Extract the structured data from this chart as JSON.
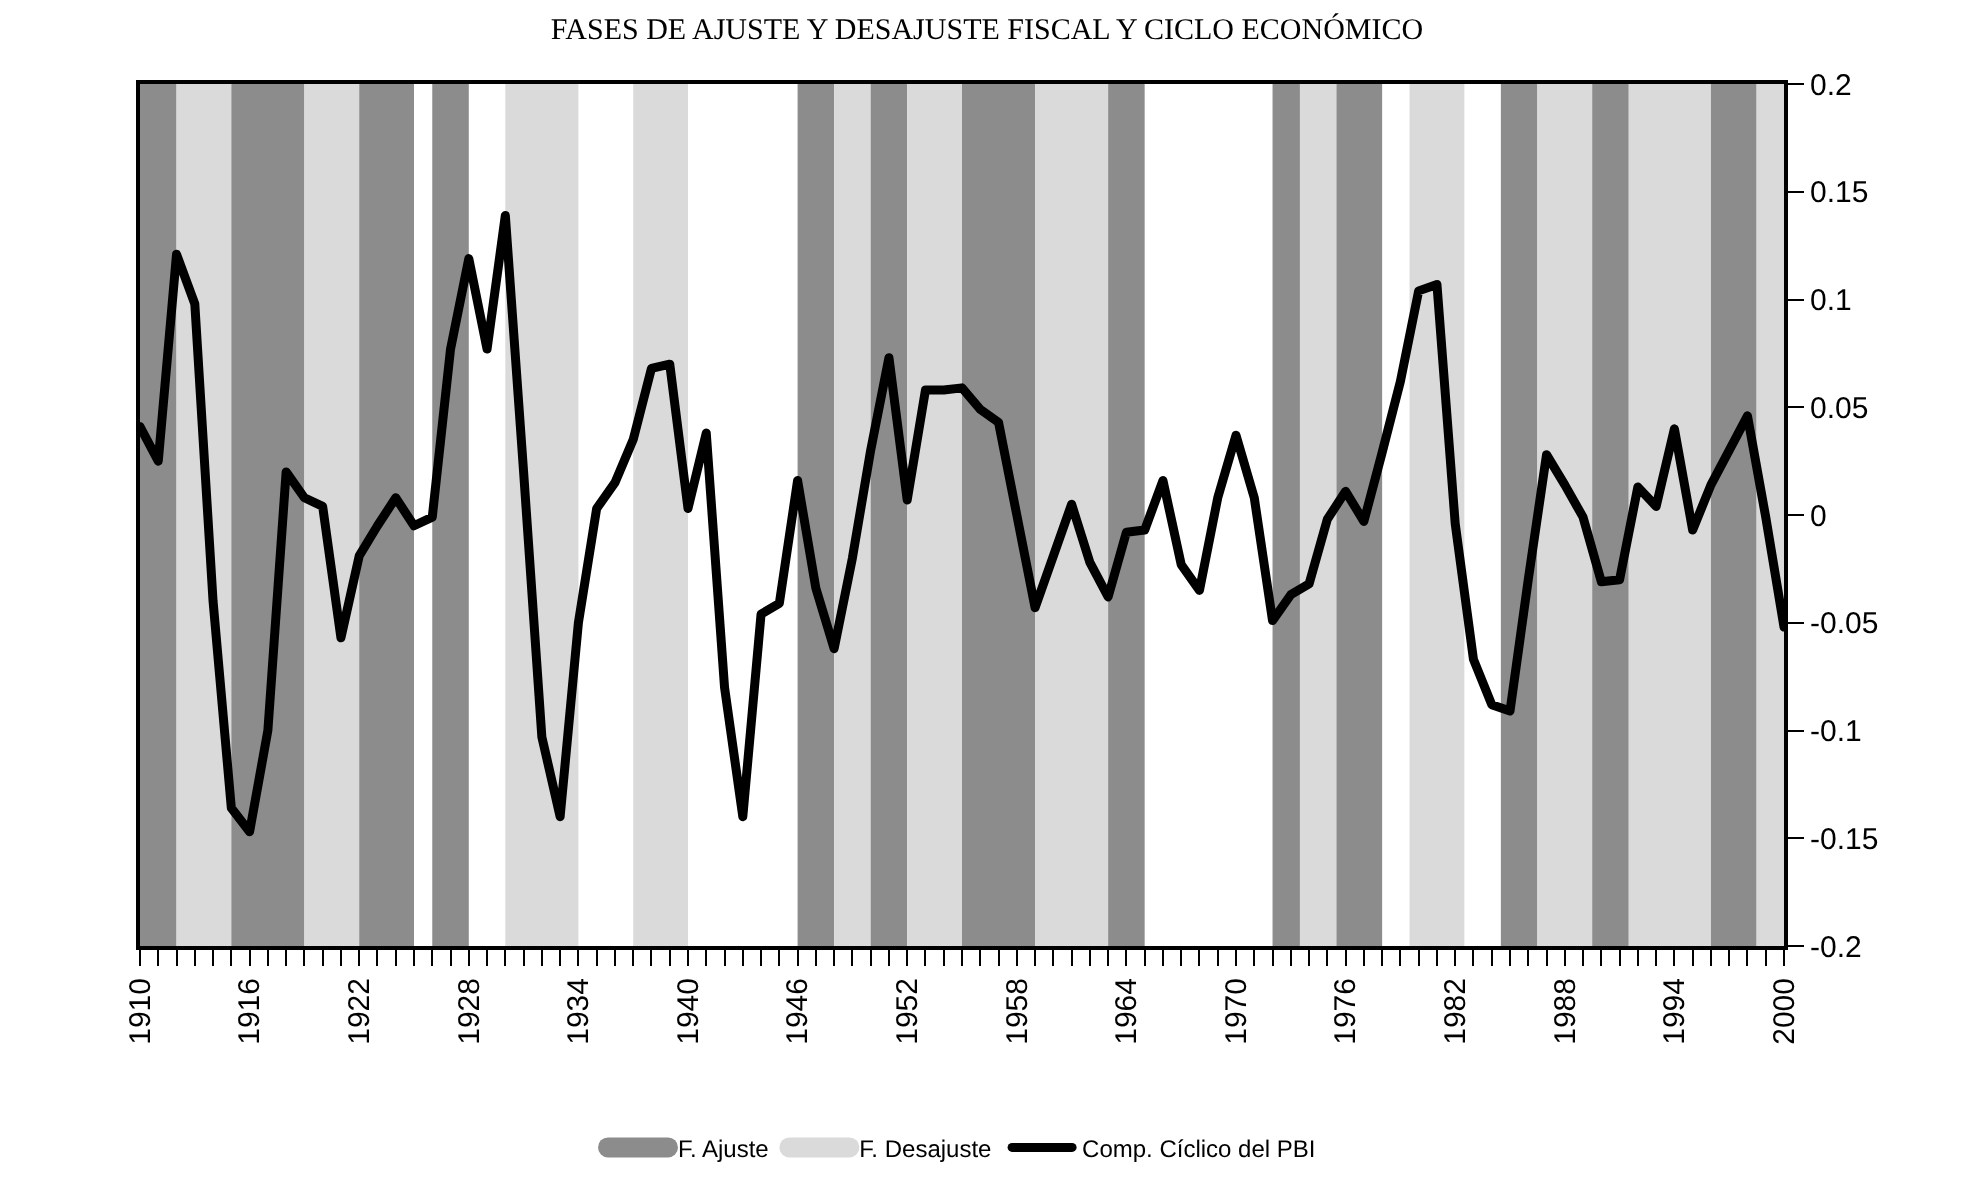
{
  "chart_data": {
    "type": "line",
    "title": "FASES DE AJUSTE Y DESAJUSTE FISCAL Y CICLO ECONÓMICO",
    "x": [
      1910,
      1911,
      1912,
      1913,
      1914,
      1915,
      1916,
      1917,
      1918,
      1919,
      1920,
      1921,
      1922,
      1923,
      1924,
      1925,
      1926,
      1927,
      1928,
      1929,
      1930,
      1931,
      1932,
      1933,
      1934,
      1935,
      1936,
      1937,
      1938,
      1939,
      1940,
      1941,
      1942,
      1943,
      1944,
      1945,
      1946,
      1947,
      1948,
      1949,
      1950,
      1951,
      1952,
      1953,
      1954,
      1955,
      1956,
      1957,
      1958,
      1959,
      1960,
      1961,
      1962,
      1963,
      1964,
      1965,
      1966,
      1967,
      1968,
      1969,
      1970,
      1971,
      1972,
      1973,
      1974,
      1975,
      1976,
      1977,
      1978,
      1979,
      1980,
      1981,
      1982,
      1983,
      1984,
      1985,
      1986,
      1987,
      1988,
      1989,
      1990,
      1991,
      1992,
      1993,
      1994,
      1995,
      1996,
      1997,
      1998,
      1999,
      2000
    ],
    "series": [
      {
        "name": "Comp. Cíclico del PBI",
        "color": "#000000",
        "values": [
          0.041,
          0.025,
          0.121,
          0.098,
          -0.04,
          -0.136,
          -0.147,
          -0.1,
          0.02,
          0.008,
          0.004,
          -0.057,
          -0.019,
          -0.005,
          0.008,
          -0.005,
          -0.001,
          0.077,
          0.119,
          0.077,
          0.139,
          0.02,
          -0.103,
          -0.14,
          -0.05,
          0.003,
          0.015,
          0.035,
          0.068,
          0.07,
          0.003,
          0.038,
          -0.08,
          -0.14,
          -0.046,
          -0.041,
          0.016,
          -0.034,
          -0.062,
          -0.02,
          0.03,
          0.073,
          0.007,
          0.058,
          0.058,
          0.059,
          0.049,
          0.043,
          0.0,
          -0.043,
          -0.019,
          0.005,
          -0.022,
          -0.038,
          -0.008,
          -0.007,
          0.016,
          -0.023,
          -0.035,
          0.008,
          0.037,
          0.008,
          -0.049,
          -0.037,
          -0.032,
          -0.002,
          0.011,
          -0.003,
          0.029,
          0.062,
          0.104,
          0.107,
          -0.004,
          -0.067,
          -0.088,
          -0.091,
          -0.03,
          0.028,
          0.014,
          -0.001,
          -0.031,
          -0.03,
          0.013,
          0.004,
          0.04,
          -0.007,
          0.014,
          0.03,
          0.046,
          -0.001,
          -0.052
        ]
      }
    ],
    "xlim": [
      1910,
      2000
    ],
    "xticks": [
      {
        "value": 1910,
        "label": "1910"
      },
      {
        "value": 1911,
        "label": null
      },
      {
        "value": 1912,
        "label": null
      },
      {
        "value": 1913,
        "label": null
      },
      {
        "value": 1914,
        "label": null
      },
      {
        "value": 1915,
        "label": null
      },
      {
        "value": 1916,
        "label": "1916"
      },
      {
        "value": 1917,
        "label": null
      },
      {
        "value": 1918,
        "label": null
      },
      {
        "value": 1919,
        "label": null
      },
      {
        "value": 1920,
        "label": null
      },
      {
        "value": 1921,
        "label": null
      },
      {
        "value": 1922,
        "label": "1922"
      },
      {
        "value": 1923,
        "label": null
      },
      {
        "value": 1924,
        "label": null
      },
      {
        "value": 1925,
        "label": null
      },
      {
        "value": 1926,
        "label": null
      },
      {
        "value": 1927,
        "label": null
      },
      {
        "value": 1928,
        "label": "1928"
      },
      {
        "value": 1929,
        "label": null
      },
      {
        "value": 1930,
        "label": null
      },
      {
        "value": 1931,
        "label": null
      },
      {
        "value": 1932,
        "label": null
      },
      {
        "value": 1933,
        "label": null
      },
      {
        "value": 1934,
        "label": "1934"
      },
      {
        "value": 1935,
        "label": null
      },
      {
        "value": 1936,
        "label": null
      },
      {
        "value": 1937,
        "label": null
      },
      {
        "value": 1938,
        "label": null
      },
      {
        "value": 1939,
        "label": null
      },
      {
        "value": 1940,
        "label": "1940"
      },
      {
        "value": 1941,
        "label": null
      },
      {
        "value": 1942,
        "label": null
      },
      {
        "value": 1943,
        "label": null
      },
      {
        "value": 1944,
        "label": null
      },
      {
        "value": 1945,
        "label": null
      },
      {
        "value": 1946,
        "label": "1946"
      },
      {
        "value": 1947,
        "label": null
      },
      {
        "value": 1948,
        "label": null
      },
      {
        "value": 1949,
        "label": null
      },
      {
        "value": 1950,
        "label": null
      },
      {
        "value": 1951,
        "label": null
      },
      {
        "value": 1952,
        "label": "1952"
      },
      {
        "value": 1953,
        "label": null
      },
      {
        "value": 1954,
        "label": null
      },
      {
        "value": 1955,
        "label": null
      },
      {
        "value": 1956,
        "label": null
      },
      {
        "value": 1957,
        "label": null
      },
      {
        "value": 1958,
        "label": "1958"
      },
      {
        "value": 1959,
        "label": null
      },
      {
        "value": 1960,
        "label": null
      },
      {
        "value": 1961,
        "label": null
      },
      {
        "value": 1962,
        "label": null
      },
      {
        "value": 1963,
        "label": null
      },
      {
        "value": 1964,
        "label": "1964"
      },
      {
        "value": 1965,
        "label": null
      },
      {
        "value": 1966,
        "label": null
      },
      {
        "value": 1967,
        "label": null
      },
      {
        "value": 1968,
        "label": null
      },
      {
        "value": 1969,
        "label": null
      },
      {
        "value": 1970,
        "label": "1970"
      },
      {
        "value": 1971,
        "label": null
      },
      {
        "value": 1972,
        "label": null
      },
      {
        "value": 1973,
        "label": null
      },
      {
        "value": 1974,
        "label": null
      },
      {
        "value": 1975,
        "label": null
      },
      {
        "value": 1976,
        "label": "1976"
      },
      {
        "value": 1977,
        "label": null
      },
      {
        "value": 1978,
        "label": null
      },
      {
        "value": 1979,
        "label": null
      },
      {
        "value": 1980,
        "label": null
      },
      {
        "value": 1981,
        "label": null
      },
      {
        "value": 1982,
        "label": "1982"
      },
      {
        "value": 1983,
        "label": null
      },
      {
        "value": 1984,
        "label": null
      },
      {
        "value": 1985,
        "label": null
      },
      {
        "value": 1986,
        "label": null
      },
      {
        "value": 1987,
        "label": null
      },
      {
        "value": 1988,
        "label": "1988"
      },
      {
        "value": 1989,
        "label": null
      },
      {
        "value": 1990,
        "label": null
      },
      {
        "value": 1991,
        "label": null
      },
      {
        "value": 1992,
        "label": null
      },
      {
        "value": 1993,
        "label": null
      },
      {
        "value": 1994,
        "label": "1994"
      },
      {
        "value": 1995,
        "label": null
      },
      {
        "value": 1996,
        "label": null
      },
      {
        "value": 1997,
        "label": null
      },
      {
        "value": 1998,
        "label": null
      },
      {
        "value": 1999,
        "label": null
      },
      {
        "value": 2000,
        "label": "2000"
      }
    ],
    "ylim": [
      -0.2,
      0.2
    ],
    "yticks": [
      -0.2,
      -0.15,
      -0.1,
      -0.05,
      0,
      0.05,
      0.1,
      0.15,
      0.2
    ],
    "bands": [
      {
        "axis": "x",
        "from": 1910,
        "to": 1912,
        "label": "F. Ajuste",
        "color": "#8c8c8c"
      },
      {
        "axis": "x",
        "from": 1912,
        "to": 1915,
        "label": "F. Desajuste",
        "color": "#dadada"
      },
      {
        "axis": "x",
        "from": 1915,
        "to": 1919,
        "color": "#8c8c8c"
      },
      {
        "axis": "x",
        "from": 1919,
        "to": 1922,
        "color": "#dadada"
      },
      {
        "axis": "x",
        "from": 1922,
        "to": 1925,
        "color": "#8c8c8c"
      },
      {
        "axis": "x",
        "from": 1926,
        "to": 1928,
        "color": "#8c8c8c"
      },
      {
        "axis": "x",
        "from": 1930,
        "to": 1934,
        "color": "#dadada"
      },
      {
        "axis": "x",
        "from": 1937,
        "to": 1940,
        "color": "#dadada"
      },
      {
        "axis": "x",
        "from": 1946,
        "to": 1948,
        "color": "#8c8c8c"
      },
      {
        "axis": "x",
        "from": 1948,
        "to": 1950,
        "color": "#dadada"
      },
      {
        "axis": "x",
        "from": 1950,
        "to": 1952,
        "color": "#8c8c8c"
      },
      {
        "axis": "x",
        "from": 1952,
        "to": 1955,
        "color": "#dadada"
      },
      {
        "axis": "x",
        "from": 1955,
        "to": 1959,
        "color": "#8c8c8c"
      },
      {
        "axis": "x",
        "from": 1959,
        "to": 1963,
        "color": "#dadada"
      },
      {
        "axis": "x",
        "from": 1963,
        "to": 1965,
        "color": "#8c8c8c"
      },
      {
        "axis": "x",
        "from": 1972,
        "to": 1973.5,
        "color": "#8c8c8c"
      },
      {
        "axis": "x",
        "from": 1973.5,
        "to": 1975.5,
        "color": "#dadada"
      },
      {
        "axis": "x",
        "from": 1975.5,
        "to": 1978,
        "color": "#8c8c8c"
      },
      {
        "axis": "x",
        "from": 1979.5,
        "to": 1982.5,
        "color": "#dadada"
      },
      {
        "axis": "x",
        "from": 1984.5,
        "to": 1986.5,
        "color": "#8c8c8c"
      },
      {
        "axis": "x",
        "from": 1986.5,
        "to": 1989.5,
        "color": "#dadada"
      },
      {
        "axis": "x",
        "from": 1989.5,
        "to": 1991.5,
        "color": "#8c8c8c"
      },
      {
        "axis": "x",
        "from": 1991.5,
        "to": 1996,
        "color": "#dadada"
      },
      {
        "axis": "x",
        "from": 1996,
        "to": 1998.5,
        "color": "#8c8c8c"
      },
      {
        "axis": "x",
        "from": 1998.5,
        "to": 2000,
        "color": "#dadada"
      }
    ],
    "grid": false,
    "legend": "bottom",
    "marker": "none",
    "line_style": "solid"
  }
}
